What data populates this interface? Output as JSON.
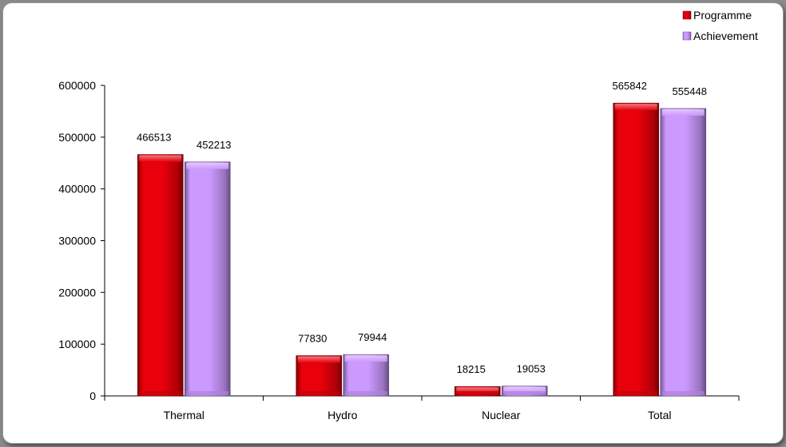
{
  "chart_data": {
    "type": "bar",
    "categories": [
      "Thermal",
      "Hydro",
      "Nuclear",
      "Total"
    ],
    "series": [
      {
        "name": "Programme",
        "values": [
          466513,
          77830,
          18215,
          565842
        ],
        "color": "#e8000b"
      },
      {
        "name": "Achievement",
        "values": [
          452213,
          79944,
          19053,
          555448
        ],
        "color": "#cc99ff"
      }
    ],
    "ylim": [
      0,
      600000
    ],
    "yticks": [
      0,
      100000,
      200000,
      300000,
      400000,
      500000,
      600000
    ],
    "title": "",
    "xlabel": "",
    "ylabel": "",
    "grid": false,
    "legend_position": "top-right",
    "data_labels": true
  }
}
